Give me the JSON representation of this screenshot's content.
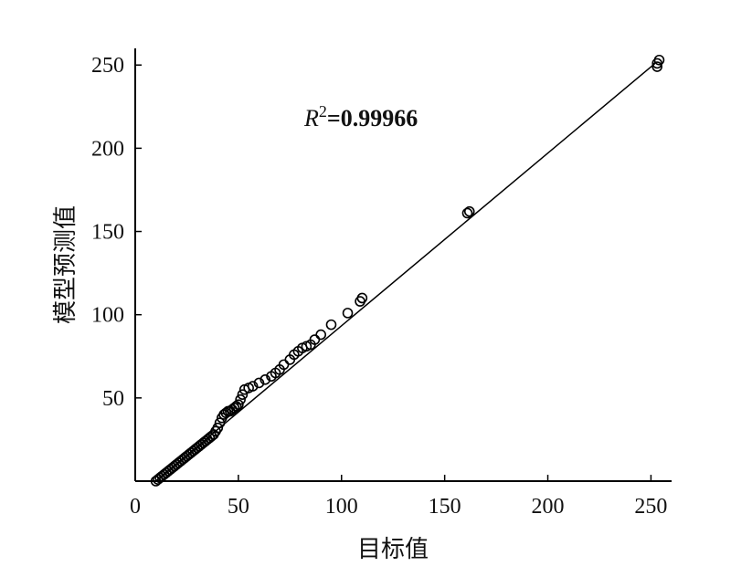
{
  "chart_data": {
    "type": "scatter",
    "xlabel": "目标值",
    "ylabel": "模型预测值",
    "xlim": [
      0,
      260
    ],
    "ylim": [
      0,
      260
    ],
    "x_ticks": [
      0,
      50,
      100,
      150,
      200,
      250
    ],
    "y_ticks": [
      50,
      100,
      150,
      200,
      250
    ],
    "grid": false,
    "annotation": {
      "var": "R",
      "sup": "2",
      "value": "=0.99966"
    },
    "fit_line": {
      "x": [
        10,
        252
      ],
      "y": [
        0,
        251
      ]
    },
    "points": [
      {
        "x": 10,
        "y": 0
      },
      {
        "x": 11,
        "y": 1
      },
      {
        "x": 12,
        "y": 2
      },
      {
        "x": 13,
        "y": 3
      },
      {
        "x": 14,
        "y": 4
      },
      {
        "x": 15,
        "y": 5
      },
      {
        "x": 16,
        "y": 6
      },
      {
        "x": 17,
        "y": 7
      },
      {
        "x": 18,
        "y": 8
      },
      {
        "x": 19,
        "y": 9
      },
      {
        "x": 20,
        "y": 10
      },
      {
        "x": 21,
        "y": 11
      },
      {
        "x": 22,
        "y": 12
      },
      {
        "x": 23,
        "y": 13
      },
      {
        "x": 24,
        "y": 14
      },
      {
        "x": 25,
        "y": 15
      },
      {
        "x": 26,
        "y": 16
      },
      {
        "x": 27,
        "y": 17
      },
      {
        "x": 28,
        "y": 18
      },
      {
        "x": 29,
        "y": 19
      },
      {
        "x": 30,
        "y": 20
      },
      {
        "x": 31,
        "y": 21
      },
      {
        "x": 32,
        "y": 22
      },
      {
        "x": 33,
        "y": 23
      },
      {
        "x": 34,
        "y": 24
      },
      {
        "x": 35,
        "y": 25
      },
      {
        "x": 36,
        "y": 26
      },
      {
        "x": 37,
        "y": 27
      },
      {
        "x": 38,
        "y": 28
      },
      {
        "x": 39,
        "y": 30
      },
      {
        "x": 40,
        "y": 32
      },
      {
        "x": 41,
        "y": 35
      },
      {
        "x": 42,
        "y": 38
      },
      {
        "x": 43,
        "y": 40
      },
      {
        "x": 44,
        "y": 41
      },
      {
        "x": 45,
        "y": 42
      },
      {
        "x": 46,
        "y": 42
      },
      {
        "x": 47,
        "y": 43
      },
      {
        "x": 48,
        "y": 44
      },
      {
        "x": 49,
        "y": 45
      },
      {
        "x": 50,
        "y": 46
      },
      {
        "x": 51,
        "y": 49
      },
      {
        "x": 52,
        "y": 52
      },
      {
        "x": 53,
        "y": 55
      },
      {
        "x": 55,
        "y": 56
      },
      {
        "x": 57,
        "y": 57
      },
      {
        "x": 60,
        "y": 59
      },
      {
        "x": 63,
        "y": 61
      },
      {
        "x": 66,
        "y": 63
      },
      {
        "x": 68,
        "y": 65
      },
      {
        "x": 70,
        "y": 67
      },
      {
        "x": 72,
        "y": 70
      },
      {
        "x": 75,
        "y": 73
      },
      {
        "x": 77,
        "y": 76
      },
      {
        "x": 79,
        "y": 78
      },
      {
        "x": 81,
        "y": 80
      },
      {
        "x": 83,
        "y": 81
      },
      {
        "x": 85,
        "y": 82
      },
      {
        "x": 87,
        "y": 85
      },
      {
        "x": 90,
        "y": 88
      },
      {
        "x": 95,
        "y": 94
      },
      {
        "x": 103,
        "y": 101
      },
      {
        "x": 109,
        "y": 108
      },
      {
        "x": 110,
        "y": 110
      },
      {
        "x": 161,
        "y": 161
      },
      {
        "x": 162,
        "y": 162
      },
      {
        "x": 253,
        "y": 249
      },
      {
        "x": 253,
        "y": 251
      },
      {
        "x": 254,
        "y": 253
      }
    ]
  }
}
